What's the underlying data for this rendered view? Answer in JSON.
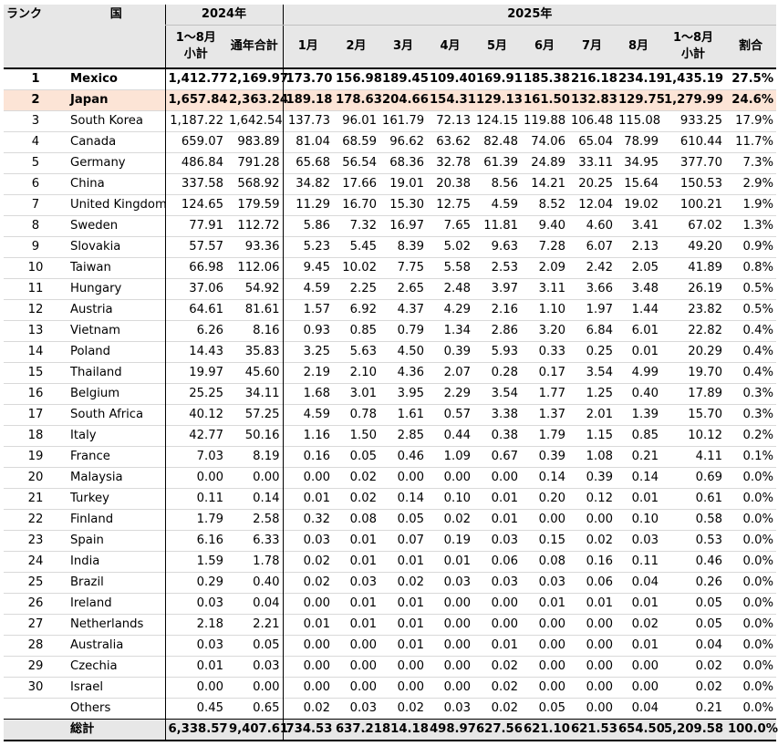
{
  "header": {
    "rank": "ランク",
    "country": "国",
    "year2024": "2024年",
    "year2025": "2025年",
    "subtotal_line1": "1～8月",
    "subtotal_line2": "小計",
    "annual_total": "通年合計",
    "months": [
      "1月",
      "2月",
      "3月",
      "4月",
      "5月",
      "6月",
      "7月",
      "8月"
    ],
    "share": "割合"
  },
  "rows": [
    {
      "rank": "1",
      "country": "Mexico",
      "s2024": "1,412.77",
      "t2024": "2,169.97",
      "m": [
        "173.70",
        "156.98",
        "189.45",
        "109.40",
        "169.91",
        "185.38",
        "216.18",
        "234.19"
      ],
      "s2025": "1,435.19",
      "share": "27.5%"
    },
    {
      "rank": "2",
      "country": "Japan",
      "s2024": "1,657.84",
      "t2024": "2,363.24",
      "m": [
        "189.18",
        "178.63",
        "204.66",
        "154.31",
        "129.13",
        "161.50",
        "132.83",
        "129.75"
      ],
      "s2025": "1,279.99",
      "share": "24.6%"
    },
    {
      "rank": "3",
      "country": "South Korea",
      "s2024": "1,187.22",
      "t2024": "1,642.54",
      "m": [
        "137.73",
        "96.01",
        "161.79",
        "72.13",
        "124.15",
        "119.88",
        "106.48",
        "115.08"
      ],
      "s2025": "933.25",
      "share": "17.9%"
    },
    {
      "rank": "4",
      "country": "Canada",
      "s2024": "659.07",
      "t2024": "983.89",
      "m": [
        "81.04",
        "68.59",
        "96.62",
        "63.62",
        "82.48",
        "74.06",
        "65.04",
        "78.99"
      ],
      "s2025": "610.44",
      "share": "11.7%"
    },
    {
      "rank": "5",
      "country": "Germany",
      "s2024": "486.84",
      "t2024": "791.28",
      "m": [
        "65.68",
        "56.54",
        "68.36",
        "32.78",
        "61.39",
        "24.89",
        "33.11",
        "34.95"
      ],
      "s2025": "377.70",
      "share": "7.3%"
    },
    {
      "rank": "6",
      "country": "China",
      "s2024": "337.58",
      "t2024": "568.92",
      "m": [
        "34.82",
        "17.66",
        "19.01",
        "20.38",
        "8.56",
        "14.21",
        "20.25",
        "15.64"
      ],
      "s2025": "150.53",
      "share": "2.9%"
    },
    {
      "rank": "7",
      "country": "United Kingdom",
      "s2024": "124.65",
      "t2024": "179.59",
      "m": [
        "11.29",
        "16.70",
        "15.30",
        "12.75",
        "4.59",
        "8.52",
        "12.04",
        "19.02"
      ],
      "s2025": "100.21",
      "share": "1.9%"
    },
    {
      "rank": "8",
      "country": "Sweden",
      "s2024": "77.91",
      "t2024": "112.72",
      "m": [
        "5.86",
        "7.32",
        "16.97",
        "7.65",
        "11.81",
        "9.40",
        "4.60",
        "3.41"
      ],
      "s2025": "67.02",
      "share": "1.3%"
    },
    {
      "rank": "9",
      "country": "Slovakia",
      "s2024": "57.57",
      "t2024": "93.36",
      "m": [
        "5.23",
        "5.45",
        "8.39",
        "5.02",
        "9.63",
        "7.28",
        "6.07",
        "2.13"
      ],
      "s2025": "49.20",
      "share": "0.9%"
    },
    {
      "rank": "10",
      "country": "Taiwan",
      "s2024": "66.98",
      "t2024": "112.06",
      "m": [
        "9.45",
        "10.02",
        "7.75",
        "5.58",
        "2.53",
        "2.09",
        "2.42",
        "2.05"
      ],
      "s2025": "41.89",
      "share": "0.8%"
    },
    {
      "rank": "11",
      "country": "Hungary",
      "s2024": "37.06",
      "t2024": "54.92",
      "m": [
        "4.59",
        "2.25",
        "2.65",
        "2.48",
        "3.97",
        "3.11",
        "3.66",
        "3.48"
      ],
      "s2025": "26.19",
      "share": "0.5%"
    },
    {
      "rank": "12",
      "country": "Austria",
      "s2024": "64.61",
      "t2024": "81.61",
      "m": [
        "1.57",
        "6.92",
        "4.37",
        "4.29",
        "2.16",
        "1.10",
        "1.97",
        "1.44"
      ],
      "s2025": "23.82",
      "share": "0.5%"
    },
    {
      "rank": "13",
      "country": "Vietnam",
      "s2024": "6.26",
      "t2024": "8.16",
      "m": [
        "0.93",
        "0.85",
        "0.79",
        "1.34",
        "2.86",
        "3.20",
        "6.84",
        "6.01"
      ],
      "s2025": "22.82",
      "share": "0.4%"
    },
    {
      "rank": "14",
      "country": "Poland",
      "s2024": "14.43",
      "t2024": "35.83",
      "m": [
        "3.25",
        "5.63",
        "4.50",
        "0.39",
        "5.93",
        "0.33",
        "0.25",
        "0.01"
      ],
      "s2025": "20.29",
      "share": "0.4%"
    },
    {
      "rank": "15",
      "country": "Thailand",
      "s2024": "19.97",
      "t2024": "45.60",
      "m": [
        "2.19",
        "2.10",
        "4.36",
        "2.07",
        "0.28",
        "0.17",
        "3.54",
        "4.99"
      ],
      "s2025": "19.70",
      "share": "0.4%"
    },
    {
      "rank": "16",
      "country": "Belgium",
      "s2024": "25.25",
      "t2024": "34.11",
      "m": [
        "1.68",
        "3.01",
        "3.95",
        "2.29",
        "3.54",
        "1.77",
        "1.25",
        "0.40"
      ],
      "s2025": "17.89",
      "share": "0.3%"
    },
    {
      "rank": "17",
      "country": "South Africa",
      "s2024": "40.12",
      "t2024": "57.25",
      "m": [
        "4.59",
        "0.78",
        "1.61",
        "0.57",
        "3.38",
        "1.37",
        "2.01",
        "1.39"
      ],
      "s2025": "15.70",
      "share": "0.3%"
    },
    {
      "rank": "18",
      "country": "Italy",
      "s2024": "42.77",
      "t2024": "50.16",
      "m": [
        "1.16",
        "1.50",
        "2.85",
        "0.44",
        "0.38",
        "1.79",
        "1.15",
        "0.85"
      ],
      "s2025": "10.12",
      "share": "0.2%"
    },
    {
      "rank": "19",
      "country": "France",
      "s2024": "7.03",
      "t2024": "8.19",
      "m": [
        "0.16",
        "0.05",
        "0.46",
        "1.09",
        "0.67",
        "0.39",
        "1.08",
        "0.21"
      ],
      "s2025": "4.11",
      "share": "0.1%"
    },
    {
      "rank": "20",
      "country": "Malaysia",
      "s2024": "0.00",
      "t2024": "0.00",
      "m": [
        "0.00",
        "0.02",
        "0.00",
        "0.00",
        "0.00",
        "0.14",
        "0.39",
        "0.14"
      ],
      "s2025": "0.69",
      "share": "0.0%"
    },
    {
      "rank": "21",
      "country": "Turkey",
      "s2024": "0.11",
      "t2024": "0.14",
      "m": [
        "0.01",
        "0.02",
        "0.14",
        "0.10",
        "0.01",
        "0.20",
        "0.12",
        "0.01"
      ],
      "s2025": "0.61",
      "share": "0.0%"
    },
    {
      "rank": "22",
      "country": "Finland",
      "s2024": "1.79",
      "t2024": "2.58",
      "m": [
        "0.32",
        "0.08",
        "0.05",
        "0.02",
        "0.01",
        "0.00",
        "0.00",
        "0.10"
      ],
      "s2025": "0.58",
      "share": "0.0%"
    },
    {
      "rank": "23",
      "country": "Spain",
      "s2024": "6.16",
      "t2024": "6.33",
      "m": [
        "0.03",
        "0.01",
        "0.07",
        "0.19",
        "0.03",
        "0.15",
        "0.02",
        "0.03"
      ],
      "s2025": "0.53",
      "share": "0.0%"
    },
    {
      "rank": "24",
      "country": "India",
      "s2024": "1.59",
      "t2024": "1.78",
      "m": [
        "0.02",
        "0.01",
        "0.01",
        "0.01",
        "0.06",
        "0.08",
        "0.16",
        "0.11"
      ],
      "s2025": "0.46",
      "share": "0.0%"
    },
    {
      "rank": "25",
      "country": "Brazil",
      "s2024": "0.29",
      "t2024": "0.40",
      "m": [
        "0.02",
        "0.03",
        "0.02",
        "0.03",
        "0.03",
        "0.03",
        "0.06",
        "0.04"
      ],
      "s2025": "0.26",
      "share": "0.0%"
    },
    {
      "rank": "26",
      "country": "Ireland",
      "s2024": "0.03",
      "t2024": "0.04",
      "m": [
        "0.00",
        "0.01",
        "0.01",
        "0.00",
        "0.00",
        "0.01",
        "0.01",
        "0.01"
      ],
      "s2025": "0.05",
      "share": "0.0%"
    },
    {
      "rank": "27",
      "country": "Netherlands",
      "s2024": "2.18",
      "t2024": "2.21",
      "m": [
        "0.01",
        "0.01",
        "0.01",
        "0.00",
        "0.00",
        "0.00",
        "0.00",
        "0.02"
      ],
      "s2025": "0.05",
      "share": "0.0%"
    },
    {
      "rank": "28",
      "country": "Australia",
      "s2024": "0.03",
      "t2024": "0.05",
      "m": [
        "0.00",
        "0.00",
        "0.01",
        "0.00",
        "0.01",
        "0.00",
        "0.00",
        "0.01"
      ],
      "s2025": "0.04",
      "share": "0.0%"
    },
    {
      "rank": "29",
      "country": "Czechia",
      "s2024": "0.01",
      "t2024": "0.03",
      "m": [
        "0.00",
        "0.00",
        "0.00",
        "0.00",
        "0.02",
        "0.00",
        "0.00",
        "0.00"
      ],
      "s2025": "0.02",
      "share": "0.0%"
    },
    {
      "rank": "30",
      "country": "Israel",
      "s2024": "0.00",
      "t2024": "0.00",
      "m": [
        "0.00",
        "0.00",
        "0.00",
        "0.00",
        "0.02",
        "0.00",
        "0.00",
        "0.00"
      ],
      "s2025": "0.02",
      "share": "0.0%"
    },
    {
      "rank": "",
      "country": "Others",
      "s2024": "0.45",
      "t2024": "0.65",
      "m": [
        "0.02",
        "0.03",
        "0.02",
        "0.03",
        "0.02",
        "0.05",
        "0.00",
        "0.04"
      ],
      "s2025": "0.21",
      "share": "0.0%"
    }
  ],
  "bold_rows": [
    0,
    1
  ],
  "highlight_rows": [
    1
  ],
  "highlight_color": "#fce4d6",
  "header_bg": "#e7e7e7",
  "total": {
    "label": "総計",
    "s2024": "6,338.57",
    "t2024": "9,407.61",
    "m": [
      "734.53",
      "637.21",
      "814.18",
      "498.97",
      "627.56",
      "621.10",
      "621.53",
      "654.50"
    ],
    "s2025": "5,209.58",
    "share": "100.0%"
  }
}
